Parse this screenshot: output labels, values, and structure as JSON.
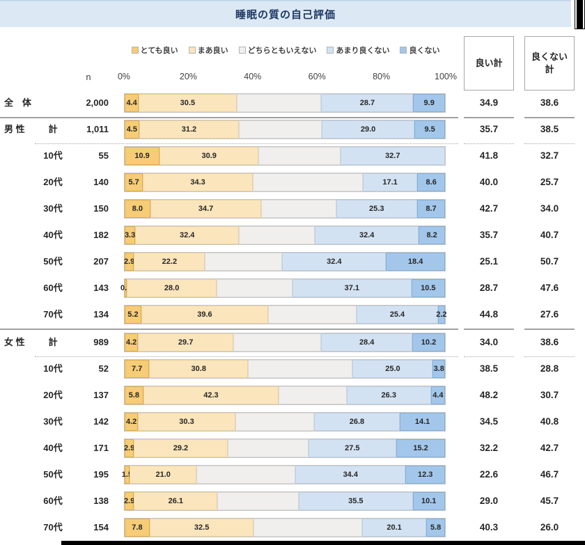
{
  "title": "睡眠の質の自己評価",
  "columns": {
    "n_label": "n",
    "good_label": "良い計",
    "bad_label_lines": [
      "良くない",
      "計"
    ]
  },
  "chart_data": {
    "type": "bar",
    "orientation": "horizontal-stacked",
    "title": "睡眠の質の自己評価",
    "x_ticks": [
      "0%",
      "20%",
      "40%",
      "60%",
      "80%",
      "100%"
    ],
    "x_range": [
      0,
      100
    ],
    "legend_position": "top",
    "series": [
      {
        "name": "とても良い",
        "color": "#F6CC76",
        "border": "#E0AC4C"
      },
      {
        "name": "まあ良い",
        "color": "#FBE5BC",
        "border": "#EBD2A0"
      },
      {
        "name": "どちらともいえない",
        "color": "#F0EFED",
        "border": "#D9D9D9"
      },
      {
        "name": "あまり良くない",
        "color": "#D3E2F2",
        "border": "#BBD0E6"
      },
      {
        "name": "良くない",
        "color": "#A3C7EA",
        "border": "#85AFD9"
      }
    ],
    "rows": [
      {
        "group": "全　体",
        "sub": "",
        "n": "2,000",
        "values": [
          4.4,
          30.5,
          26.5,
          28.7,
          9.9
        ],
        "good_total": 34.9,
        "bad_total": 38.6,
        "divider_after": "solid"
      },
      {
        "group": "男 性",
        "sub": "計",
        "n": "1,011",
        "values": [
          4.5,
          31.2,
          25.8,
          29.0,
          9.5
        ],
        "good_total": 35.7,
        "bad_total": 38.5,
        "divider_after": "dotted"
      },
      {
        "group": "",
        "sub": "10代",
        "n": "55",
        "values": [
          10.9,
          30.9,
          25.5,
          32.7,
          0.0
        ],
        "good_total": 41.8,
        "bad_total": 32.7,
        "divider_after": null
      },
      {
        "group": "",
        "sub": "20代",
        "n": "140",
        "values": [
          5.7,
          34.3,
          34.3,
          17.1,
          8.6
        ],
        "good_total": 40.0,
        "bad_total": 25.7,
        "divider_after": null
      },
      {
        "group": "",
        "sub": "30代",
        "n": "150",
        "values": [
          8.0,
          34.7,
          23.3,
          25.3,
          8.7
        ],
        "good_total": 42.7,
        "bad_total": 34.0,
        "divider_after": null
      },
      {
        "group": "",
        "sub": "40代",
        "n": "182",
        "values": [
          3.3,
          32.4,
          23.7,
          32.4,
          8.2
        ],
        "good_total": 35.7,
        "bad_total": 40.7,
        "divider_after": null
      },
      {
        "group": "",
        "sub": "50代",
        "n": "207",
        "values": [
          2.9,
          22.2,
          24.1,
          32.4,
          18.4
        ],
        "good_total": 25.1,
        "bad_total": 50.7,
        "divider_after": null
      },
      {
        "group": "",
        "sub": "60代",
        "n": "143",
        "values": [
          0.7,
          28.0,
          23.7,
          37.1,
          10.5
        ],
        "good_total": 28.7,
        "bad_total": 47.6,
        "divider_after": null
      },
      {
        "group": "",
        "sub": "70代",
        "n": "134",
        "values": [
          5.2,
          39.6,
          27.6,
          25.4,
          2.2
        ],
        "good_total": 44.8,
        "bad_total": 27.6,
        "divider_after": "solid"
      },
      {
        "group": "女 性",
        "sub": "計",
        "n": "989",
        "values": [
          4.2,
          29.7,
          27.5,
          28.4,
          10.2
        ],
        "good_total": 34.0,
        "bad_total": 38.6,
        "divider_after": "dotted"
      },
      {
        "group": "",
        "sub": "10代",
        "n": "52",
        "values": [
          7.7,
          30.8,
          32.7,
          25.0,
          3.8
        ],
        "good_total": 38.5,
        "bad_total": 28.8,
        "divider_after": null
      },
      {
        "group": "",
        "sub": "20代",
        "n": "137",
        "values": [
          5.8,
          42.3,
          21.2,
          26.3,
          4.4
        ],
        "good_total": 48.2,
        "bad_total": 30.7,
        "divider_after": null
      },
      {
        "group": "",
        "sub": "30代",
        "n": "142",
        "values": [
          4.2,
          30.3,
          24.6,
          26.8,
          14.1
        ],
        "good_total": 34.5,
        "bad_total": 40.8,
        "divider_after": null
      },
      {
        "group": "",
        "sub": "40代",
        "n": "171",
        "values": [
          2.9,
          29.2,
          25.2,
          27.5,
          15.2
        ],
        "good_total": 32.2,
        "bad_total": 42.7,
        "divider_after": null
      },
      {
        "group": "",
        "sub": "50代",
        "n": "195",
        "values": [
          1.5,
          21.0,
          30.8,
          34.4,
          12.3
        ],
        "good_total": 22.6,
        "bad_total": 46.7,
        "divider_after": null
      },
      {
        "group": "",
        "sub": "60代",
        "n": "138",
        "values": [
          2.9,
          26.1,
          25.4,
          35.5,
          10.1
        ],
        "good_total": 29.0,
        "bad_total": 45.7,
        "divider_after": null
      },
      {
        "group": "",
        "sub": "70代",
        "n": "154",
        "values": [
          7.8,
          32.5,
          33.8,
          20.1,
          5.8
        ],
        "good_total": 40.3,
        "bad_total": 26.0,
        "divider_after": null
      }
    ]
  }
}
